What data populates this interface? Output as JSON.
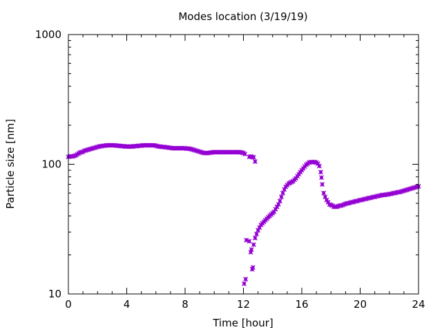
{
  "chart_data": {
    "type": "scatter",
    "title": "Modes location (3/19/19)",
    "xlabel": "Time [hour]",
    "ylabel": "Particle size [nm]",
    "xlim": [
      0,
      24
    ],
    "ylim": [
      10,
      1000
    ],
    "yscale": "log",
    "x_ticks": [
      0,
      4,
      8,
      12,
      16,
      20,
      24
    ],
    "y_ticks": [
      10,
      100,
      1000
    ],
    "grid": false,
    "legend": "none",
    "marker_color": "#9400d3",
    "series": [
      {
        "name": "",
        "points": [
          [
            0.0,
            114
          ],
          [
            0.1,
            115
          ],
          [
            0.2,
            115
          ],
          [
            0.3,
            115
          ],
          [
            0.4,
            116
          ],
          [
            0.5,
            117
          ],
          [
            0.6,
            119
          ],
          [
            0.7,
            121
          ],
          [
            0.8,
            123
          ],
          [
            0.9,
            124
          ],
          [
            1.0,
            125
          ],
          [
            1.1,
            127
          ],
          [
            1.2,
            128
          ],
          [
            1.3,
            129
          ],
          [
            1.4,
            130
          ],
          [
            1.5,
            131
          ],
          [
            1.6,
            132
          ],
          [
            1.7,
            133
          ],
          [
            1.8,
            134
          ],
          [
            1.9,
            135
          ],
          [
            2.0,
            136
          ],
          [
            2.1,
            137
          ],
          [
            2.2,
            138
          ],
          [
            2.3,
            138
          ],
          [
            2.4,
            139
          ],
          [
            2.5,
            139
          ],
          [
            2.6,
            140
          ],
          [
            2.7,
            140
          ],
          [
            2.8,
            140
          ],
          [
            2.9,
            140
          ],
          [
            3.0,
            140
          ],
          [
            3.1,
            140
          ],
          [
            3.2,
            140
          ],
          [
            3.3,
            139
          ],
          [
            3.4,
            139
          ],
          [
            3.5,
            139
          ],
          [
            3.6,
            138
          ],
          [
            3.7,
            138
          ],
          [
            3.8,
            138
          ],
          [
            3.9,
            137
          ],
          [
            4.0,
            137
          ],
          [
            4.1,
            137
          ],
          [
            4.2,
            137
          ],
          [
            4.3,
            137
          ],
          [
            4.4,
            137
          ],
          [
            4.5,
            138
          ],
          [
            4.6,
            138
          ],
          [
            4.7,
            138
          ],
          [
            4.8,
            139
          ],
          [
            4.9,
            139
          ],
          [
            5.0,
            139
          ],
          [
            5.1,
            140
          ],
          [
            5.2,
            140
          ],
          [
            5.3,
            140
          ],
          [
            5.4,
            140
          ],
          [
            5.5,
            140
          ],
          [
            5.6,
            140
          ],
          [
            5.7,
            140
          ],
          [
            5.8,
            140
          ],
          [
            5.9,
            140
          ],
          [
            6.0,
            139
          ],
          [
            6.1,
            138
          ],
          [
            6.2,
            137
          ],
          [
            6.3,
            137
          ],
          [
            6.4,
            136
          ],
          [
            6.5,
            136
          ],
          [
            6.6,
            136
          ],
          [
            6.7,
            135
          ],
          [
            6.8,
            135
          ],
          [
            6.9,
            134
          ],
          [
            7.0,
            134
          ],
          [
            7.1,
            133
          ],
          [
            7.2,
            133
          ],
          [
            7.3,
            133
          ],
          [
            7.4,
            133
          ],
          [
            7.5,
            133
          ],
          [
            7.6,
            133
          ],
          [
            7.7,
            133
          ],
          [
            7.8,
            133
          ],
          [
            7.9,
            133
          ],
          [
            8.0,
            133
          ],
          [
            8.1,
            132
          ],
          [
            8.2,
            132
          ],
          [
            8.3,
            132
          ],
          [
            8.4,
            131
          ],
          [
            8.5,
            130
          ],
          [
            8.6,
            129
          ],
          [
            8.7,
            128
          ],
          [
            8.8,
            127
          ],
          [
            8.9,
            126
          ],
          [
            9.0,
            125
          ],
          [
            9.1,
            124
          ],
          [
            9.2,
            123
          ],
          [
            9.3,
            122
          ],
          [
            9.4,
            122
          ],
          [
            9.5,
            122
          ],
          [
            9.6,
            122
          ],
          [
            9.7,
            123
          ],
          [
            9.8,
            123
          ],
          [
            9.9,
            124
          ],
          [
            10.0,
            124
          ],
          [
            10.1,
            124
          ],
          [
            10.2,
            124
          ],
          [
            10.3,
            124
          ],
          [
            10.4,
            124
          ],
          [
            10.5,
            124
          ],
          [
            10.6,
            124
          ],
          [
            10.7,
            124
          ],
          [
            10.8,
            124
          ],
          [
            10.9,
            124
          ],
          [
            11.0,
            124
          ],
          [
            11.1,
            124
          ],
          [
            11.2,
            124
          ],
          [
            11.3,
            124
          ],
          [
            11.4,
            124
          ],
          [
            11.5,
            124
          ],
          [
            11.6,
            124
          ],
          [
            11.7,
            124
          ],
          [
            11.8,
            124
          ],
          [
            11.9,
            123
          ],
          [
            12.0,
            122
          ],
          [
            12.1,
            120
          ],
          [
            12.4,
            114
          ],
          [
            12.5,
            115
          ],
          [
            12.6,
            114
          ],
          [
            12.7,
            113
          ],
          [
            12.8,
            105
          ],
          [
            12.05,
            12
          ],
          [
            12.15,
            13
          ],
          [
            12.2,
            26
          ],
          [
            12.4,
            25.5
          ],
          [
            12.5,
            21
          ],
          [
            12.55,
            22
          ],
          [
            12.6,
            15.5
          ],
          [
            12.65,
            16
          ],
          [
            12.7,
            24
          ],
          [
            12.8,
            27
          ],
          [
            12.9,
            29
          ],
          [
            13.0,
            31
          ],
          [
            13.1,
            32.5
          ],
          [
            13.2,
            34
          ],
          [
            13.3,
            35
          ],
          [
            13.4,
            36
          ],
          [
            13.5,
            37
          ],
          [
            13.6,
            38
          ],
          [
            13.7,
            39
          ],
          [
            13.8,
            40
          ],
          [
            13.9,
            41
          ],
          [
            14.0,
            42
          ],
          [
            14.1,
            43
          ],
          [
            14.2,
            45
          ],
          [
            14.3,
            47
          ],
          [
            14.4,
            49
          ],
          [
            14.5,
            52
          ],
          [
            14.6,
            56
          ],
          [
            14.7,
            60
          ],
          [
            14.8,
            64
          ],
          [
            14.9,
            67
          ],
          [
            15.0,
            69
          ],
          [
            15.1,
            71
          ],
          [
            15.2,
            72
          ],
          [
            15.3,
            73
          ],
          [
            15.4,
            74
          ],
          [
            15.5,
            76
          ],
          [
            15.6,
            78
          ],
          [
            15.7,
            81
          ],
          [
            15.8,
            84
          ],
          [
            15.9,
            87
          ],
          [
            16.0,
            90
          ],
          [
            16.1,
            93
          ],
          [
            16.2,
            96
          ],
          [
            16.3,
            99
          ],
          [
            16.4,
            101
          ],
          [
            16.5,
            103
          ],
          [
            16.6,
            104
          ],
          [
            16.7,
            104
          ],
          [
            16.8,
            104
          ],
          [
            16.9,
            104
          ],
          [
            17.0,
            103
          ],
          [
            17.1,
            101
          ],
          [
            17.2,
            97
          ],
          [
            17.3,
            87
          ],
          [
            17.35,
            79
          ],
          [
            17.4,
            70
          ],
          [
            17.5,
            60
          ],
          [
            17.6,
            56
          ],
          [
            17.7,
            53
          ],
          [
            17.8,
            51
          ],
          [
            17.9,
            49
          ],
          [
            18.0,
            48.5
          ],
          [
            18.1,
            48
          ],
          [
            18.2,
            47
          ],
          [
            18.3,
            47
          ],
          [
            18.4,
            47
          ],
          [
            18.5,
            47.5
          ],
          [
            18.6,
            48
          ],
          [
            18.7,
            48
          ],
          [
            18.8,
            48.5
          ],
          [
            18.9,
            49
          ],
          [
            19.0,
            49.5
          ],
          [
            19.1,
            50
          ],
          [
            19.2,
            50
          ],
          [
            19.3,
            50.5
          ],
          [
            19.4,
            51
          ],
          [
            19.5,
            51
          ],
          [
            19.6,
            51.5
          ],
          [
            19.7,
            52
          ],
          [
            19.8,
            52
          ],
          [
            19.9,
            52.5
          ],
          [
            20.0,
            53
          ],
          [
            20.1,
            53
          ],
          [
            20.2,
            53.5
          ],
          [
            20.3,
            54
          ],
          [
            20.4,
            54
          ],
          [
            20.5,
            54.5
          ],
          [
            20.6,
            55
          ],
          [
            20.7,
            55
          ],
          [
            20.8,
            55.5
          ],
          [
            20.9,
            56
          ],
          [
            21.0,
            56
          ],
          [
            21.1,
            56.5
          ],
          [
            21.2,
            57
          ],
          [
            21.3,
            57
          ],
          [
            21.4,
            57.5
          ],
          [
            21.5,
            58
          ],
          [
            21.6,
            58
          ],
          [
            21.7,
            58
          ],
          [
            21.8,
            58.5
          ],
          [
            21.9,
            58.5
          ],
          [
            22.0,
            59
          ],
          [
            22.1,
            59
          ],
          [
            22.2,
            59.5
          ],
          [
            22.3,
            60
          ],
          [
            22.4,
            60
          ],
          [
            22.5,
            60.5
          ],
          [
            22.6,
            61
          ],
          [
            22.7,
            61
          ],
          [
            22.8,
            61.5
          ],
          [
            22.9,
            62
          ],
          [
            23.0,
            62.5
          ],
          [
            23.1,
            63
          ],
          [
            23.2,
            63.5
          ],
          [
            23.3,
            64
          ],
          [
            23.4,
            64.5
          ],
          [
            23.5,
            65
          ],
          [
            23.6,
            65.5
          ],
          [
            23.7,
            66
          ],
          [
            23.8,
            66.5
          ],
          [
            23.9,
            67
          ],
          [
            24.0,
            67.5
          ]
        ]
      }
    ]
  }
}
